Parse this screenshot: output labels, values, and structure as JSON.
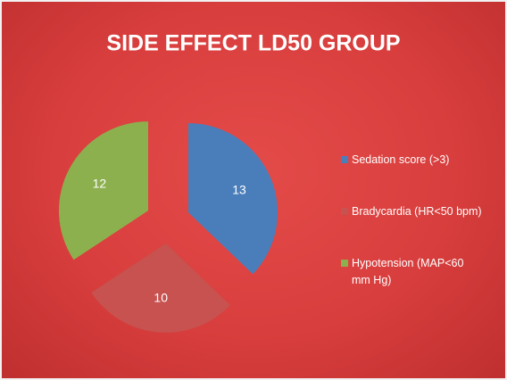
{
  "chart_data": {
    "type": "pie",
    "title": "SIDE EFFECT LD50 GROUP",
    "categories": [
      "Sedation score (>3)",
      "Bradycardia (HR<50 bpm)",
      "Hypotension (MAP<60 mm Hg)"
    ],
    "values": [
      13,
      10,
      12
    ],
    "colors": [
      "#4a7ebb",
      "#c7524f",
      "#8db04e"
    ],
    "legend": "right",
    "exploded": true
  }
}
